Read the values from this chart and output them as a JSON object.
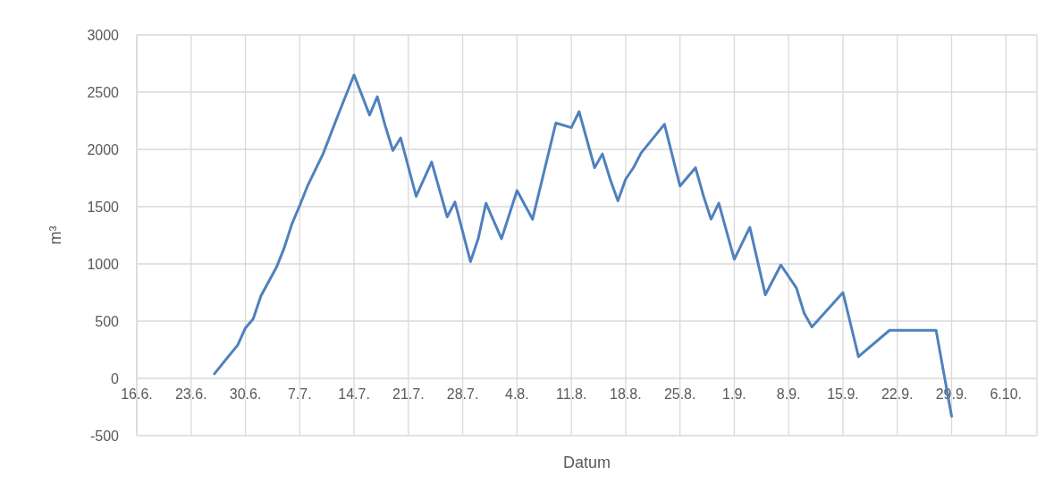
{
  "chart_data": {
    "type": "line",
    "xlabel": "Datum",
    "ylabel": "m³",
    "x": [
      "--06-26",
      "--06-29",
      "--06-30",
      "--07-01",
      "--07-02",
      "--07-04",
      "--07-05",
      "--07-06",
      "--07-07",
      "--07-08",
      "--07-10",
      "--07-12",
      "--07-14",
      "--07-16",
      "--07-17",
      "--07-18",
      "--07-19",
      "--07-20",
      "--07-22",
      "--07-24",
      "--07-26",
      "--07-27",
      "--07-29",
      "--07-30",
      "--07-31",
      "--08-02",
      "--08-04",
      "--08-06",
      "--08-09",
      "--08-11",
      "--08-12",
      "--08-14",
      "--08-15",
      "--08-16",
      "--08-17",
      "--08-18",
      "--08-19",
      "--08-20",
      "--08-23",
      "--08-25",
      "--08-27",
      "--08-28",
      "--08-29",
      "--08-30",
      "--09-01",
      "--09-03",
      "--09-05",
      "--09-07",
      "--09-09",
      "--09-10",
      "--09-11",
      "--09-15",
      "--09-17",
      "--09-21",
      "--09-27",
      "--09-29"
    ],
    "series": [
      {
        "color": "#4f81bd",
        "values": [
          40,
          290,
          440,
          520,
          720,
          970,
          1140,
          1350,
          1510,
          1680,
          1960,
          2310,
          2650,
          2300,
          2460,
          2210,
          1990,
          2100,
          1590,
          1890,
          1410,
          1540,
          1020,
          1220,
          1530,
          1220,
          1640,
          1390,
          2230,
          2190,
          2330,
          1840,
          1960,
          1740,
          1550,
          1740,
          1840,
          1970,
          2220,
          1680,
          1840,
          1600,
          1390,
          1530,
          1040,
          1320,
          730,
          990,
          790,
          570,
          450,
          750,
          190,
          420,
          420,
          -330
        ]
      }
    ],
    "xlim": [
      "--06-16",
      "--10-10"
    ],
    "xticks": [
      {
        "value": "--06-16",
        "label": "16.6."
      },
      {
        "value": "--06-23",
        "label": "23.6."
      },
      {
        "value": "--06-30",
        "label": "30.6."
      },
      {
        "value": "--07-07",
        "label": "7.7."
      },
      {
        "value": "--07-14",
        "label": "14.7."
      },
      {
        "value": "--07-21",
        "label": "21.7."
      },
      {
        "value": "--07-28",
        "label": "28.7."
      },
      {
        "value": "--08-04",
        "label": "4.8."
      },
      {
        "value": "--08-11",
        "label": "11.8."
      },
      {
        "value": "--08-18",
        "label": "18.8."
      },
      {
        "value": "--08-25",
        "label": "25.8."
      },
      {
        "value": "--09-01",
        "label": "1.9."
      },
      {
        "value": "--09-08",
        "label": "8.9."
      },
      {
        "value": "--09-15",
        "label": "15.9."
      },
      {
        "value": "--09-22",
        "label": "22.9."
      },
      {
        "value": "--09-29",
        "label": "29.9."
      },
      {
        "value": "--10-06",
        "label": "6.10."
      }
    ],
    "ylim": [
      -500,
      3000
    ],
    "yticks": [
      -500,
      0,
      500,
      1000,
      1500,
      2000,
      2500,
      3000
    ],
    "grid": true,
    "marker": "none",
    "line_style": "solid"
  }
}
